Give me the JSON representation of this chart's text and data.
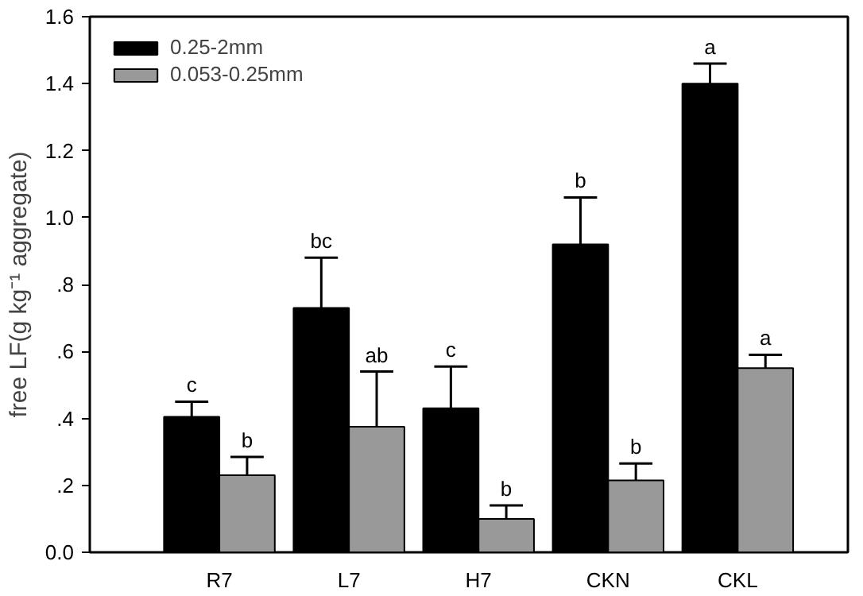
{
  "chart_data": {
    "type": "bar",
    "ylabel": "free LF(g kg⁻¹ aggregate)",
    "categories": [
      "R7",
      "L7",
      "H7",
      "CKN",
      "CKL"
    ],
    "series": [
      {
        "name": "0.25-2mm",
        "color": "#000000",
        "values": [
          0.405,
          0.73,
          0.43,
          0.92,
          1.4
        ],
        "errors": [
          [
            0.405,
            0.45
          ],
          [
            0.73,
            0.88
          ],
          [
            0.43,
            0.555
          ],
          [
            0.92,
            1.06
          ],
          [
            1.4,
            1.46
          ]
        ],
        "value_labels": [
          "c",
          "bc",
          "c",
          "b",
          "a"
        ]
      },
      {
        "name": "0.053-0.25mm",
        "color": "#999999",
        "values": [
          0.23,
          0.375,
          0.1,
          0.215,
          0.55
        ],
        "errors": [
          [
            0.23,
            0.285
          ],
          [
            0.375,
            0.54
          ],
          [
            0.1,
            0.14
          ],
          [
            0.215,
            0.265
          ],
          [
            0.55,
            0.59
          ]
        ],
        "value_labels": [
          "b",
          "ab",
          "b",
          "b",
          "a"
        ]
      }
    ],
    "ylim": [
      0,
      1.6
    ],
    "yticks": [
      {
        "value": 0,
        "label": "0.0"
      },
      {
        "value": 0.2,
        "label": ".2"
      },
      {
        "value": 0.4,
        "label": ".4"
      },
      {
        "value": 0.6,
        "label": ".6"
      },
      {
        "value": 0.8,
        "label": ".8"
      },
      "1.0",
      1.2,
      1.4,
      1.6
    ],
    "legend": "top left",
    "grid": false
  }
}
